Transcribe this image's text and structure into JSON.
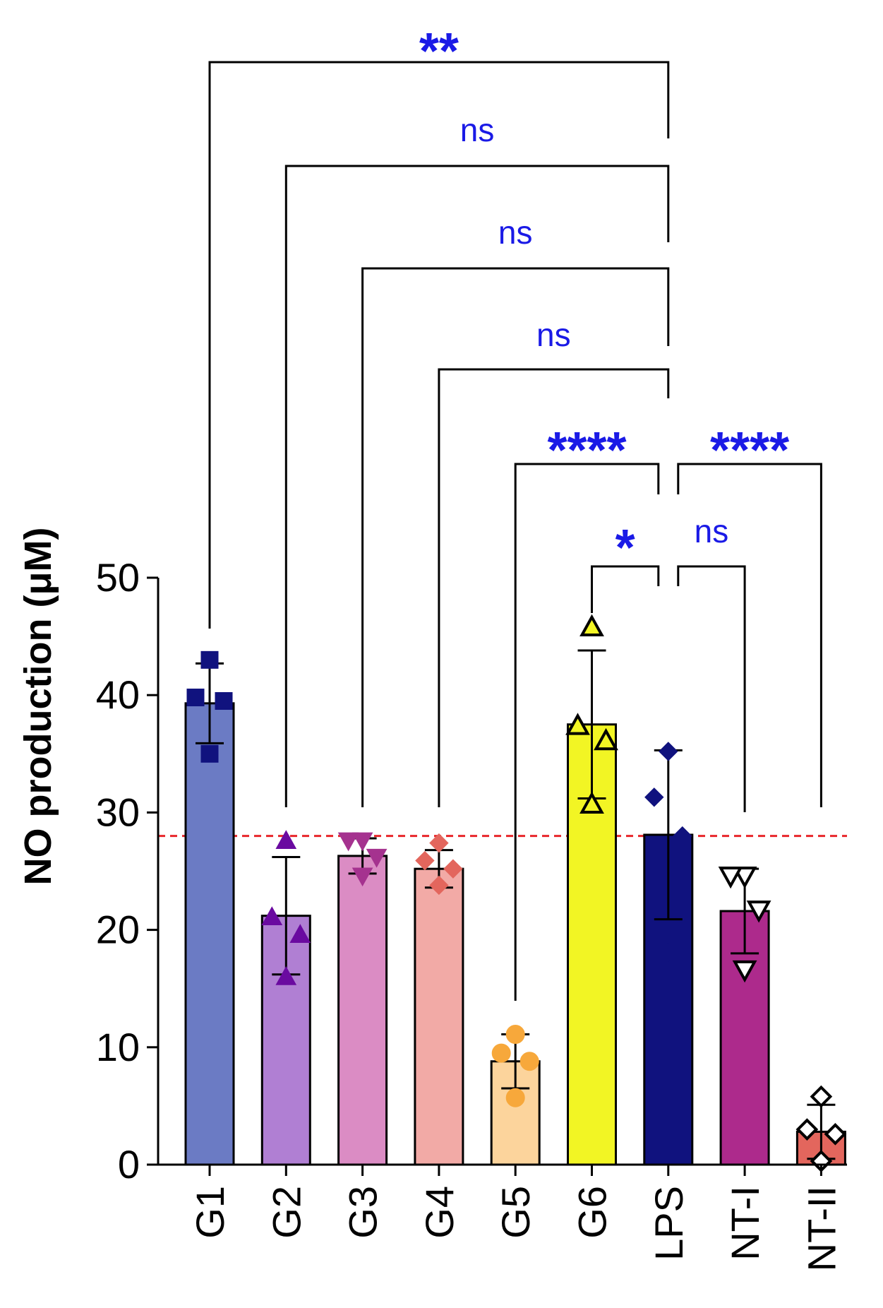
{
  "chart_data": {
    "type": "bar",
    "title": "",
    "xlabel": "",
    "ylabel": "NO production (μM)",
    "ylim": [
      0,
      50
    ],
    "yticks": [
      0,
      10,
      20,
      30,
      40,
      50
    ],
    "grid": false,
    "reference_line": {
      "value": 28,
      "color": "#e8262a",
      "style": "dashed"
    },
    "categories": [
      "G1",
      "G2",
      "G3",
      "G4",
      "G5",
      "G6",
      "LPS",
      "NT-I",
      "NT-II"
    ],
    "values": [
      39.3,
      21.2,
      26.3,
      25.2,
      8.8,
      37.5,
      28.1,
      21.6,
      2.8
    ],
    "sd": [
      3.4,
      5.0,
      1.5,
      1.6,
      2.3,
      6.3,
      7.2,
      3.6,
      2.3
    ],
    "bar_colors": [
      "#6b7bc4",
      "#b07fd3",
      "#db8cc4",
      "#f2aaa6",
      "#fcd49c",
      "#f2f524",
      "#10127e",
      "#ad2a8c",
      "#e3665d"
    ],
    "points": [
      {
        "category": "G1",
        "marker": "square",
        "filled": true,
        "color": "#10127e",
        "values": [
          43.0,
          39.8,
          39.5,
          35.0
        ]
      },
      {
        "category": "G2",
        "marker": "triangle-up",
        "filled": true,
        "color": "#6a0aa0",
        "values": [
          27.6,
          21.1,
          19.6,
          16.0
        ]
      },
      {
        "category": "G3",
        "marker": "triangle-down",
        "filled": true,
        "color": "#a5328f",
        "values": [
          27.6,
          27.6,
          26.2,
          24.6
        ]
      },
      {
        "category": "G4",
        "marker": "diamond",
        "filled": true,
        "color": "#e3665d",
        "values": [
          27.4,
          25.9,
          25.2,
          23.8
        ]
      },
      {
        "category": "G5",
        "marker": "circle",
        "filled": true,
        "color": "#f7a83b",
        "values": [
          11.1,
          9.5,
          8.8,
          5.7
        ]
      },
      {
        "category": "G6",
        "marker": "triangle-up",
        "filled": false,
        "color": "#f2f524",
        "values": [
          45.8,
          37.4,
          36.1,
          30.7
        ]
      },
      {
        "category": "LPS",
        "marker": "diamond",
        "filled": true,
        "color": "#10127e",
        "values": [
          35.2,
          31.3,
          28.0,
          18.1
        ]
      },
      {
        "category": "NT-I",
        "marker": "triangle-down",
        "filled": false,
        "color": "#ffffff",
        "values": [
          24.6,
          24.6,
          21.7,
          16.6
        ]
      },
      {
        "category": "NT-II",
        "marker": "diamond",
        "filled": false,
        "color": "#ffffff",
        "values": [
          5.8,
          3.0,
          2.6,
          0.3
        ]
      }
    ],
    "comparisons": [
      {
        "from": "G1",
        "to": "LPS",
        "label": "**"
      },
      {
        "from": "G2",
        "to": "LPS",
        "label": "ns"
      },
      {
        "from": "G3",
        "to": "LPS",
        "label": "ns"
      },
      {
        "from": "G4",
        "to": "LPS",
        "label": "ns"
      },
      {
        "from": "G5",
        "to": "LPS",
        "label": "****"
      },
      {
        "from": "LPS",
        "to": "NT-II",
        "label": "****"
      },
      {
        "from": "G6",
        "to": "LPS",
        "label": "*"
      },
      {
        "from": "LPS",
        "to": "NT-I",
        "label": "ns"
      }
    ]
  },
  "colors": {
    "annotation": "#1a1ae6",
    "axis": "#000000",
    "reference": "#e8262a"
  }
}
